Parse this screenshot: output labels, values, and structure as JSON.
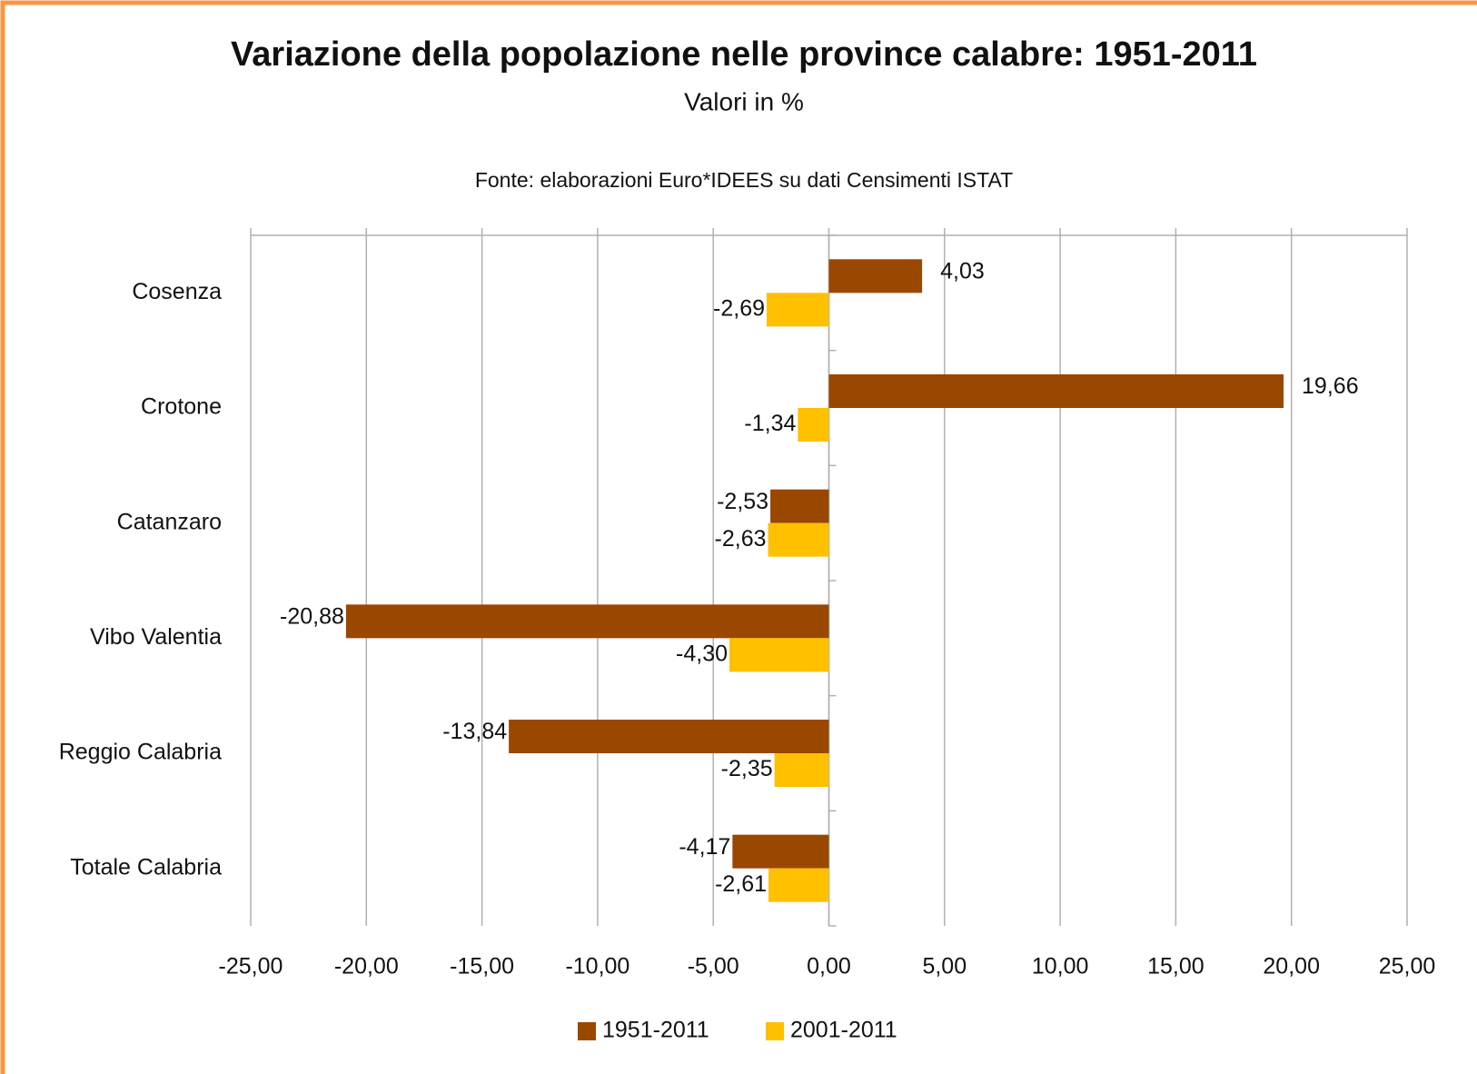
{
  "chart_data": {
    "type": "hbar",
    "title": "Variazione della popolazione nelle province calabre: 1951-2011",
    "subtitle": "Valori in %",
    "source": "Fonte: elaborazioni Euro*IDEES su dati  Censimenti ISTAT",
    "categories": [
      "Cosenza",
      "Crotone",
      "Catanzaro",
      "Vibo Valentia",
      "Reggio Calabria",
      "Totale Calabria"
    ],
    "series": [
      {
        "name": "1951-2011",
        "color": "#9a4700",
        "values": [
          4.03,
          19.66,
          -2.53,
          -20.88,
          -13.84,
          -4.17
        ],
        "value_labels": [
          "4,03",
          "19,66",
          "-2,53",
          "-20,88",
          "-13,84",
          "-4,17"
        ]
      },
      {
        "name": "2001-2011",
        "color": "#ffc000",
        "values": [
          -2.69,
          -1.34,
          -2.63,
          -4.3,
          -2.35,
          -2.61
        ],
        "value_labels": [
          "-2,69",
          "-1,34",
          "-2,63",
          "-4,30",
          "-2,35",
          "-2,61"
        ]
      }
    ],
    "xlim": [
      -25,
      25
    ],
    "xticks": [
      {
        "value": -25,
        "label": "-25,00"
      },
      {
        "value": -20,
        "label": "-20,00"
      },
      {
        "value": -15,
        "label": "-15,00"
      },
      {
        "value": -10,
        "label": "-10,00"
      },
      {
        "value": -5,
        "label": "-5,00"
      },
      {
        "value": 0,
        "label": "0,00"
      },
      {
        "value": 5,
        "label": "5,00"
      },
      {
        "value": 10,
        "label": "10,00"
      },
      {
        "value": 15,
        "label": "15,00"
      },
      {
        "value": 20,
        "label": "20,00"
      },
      {
        "value": 25,
        "label": "25,00"
      }
    ],
    "grid": true,
    "legend": "bottom"
  }
}
